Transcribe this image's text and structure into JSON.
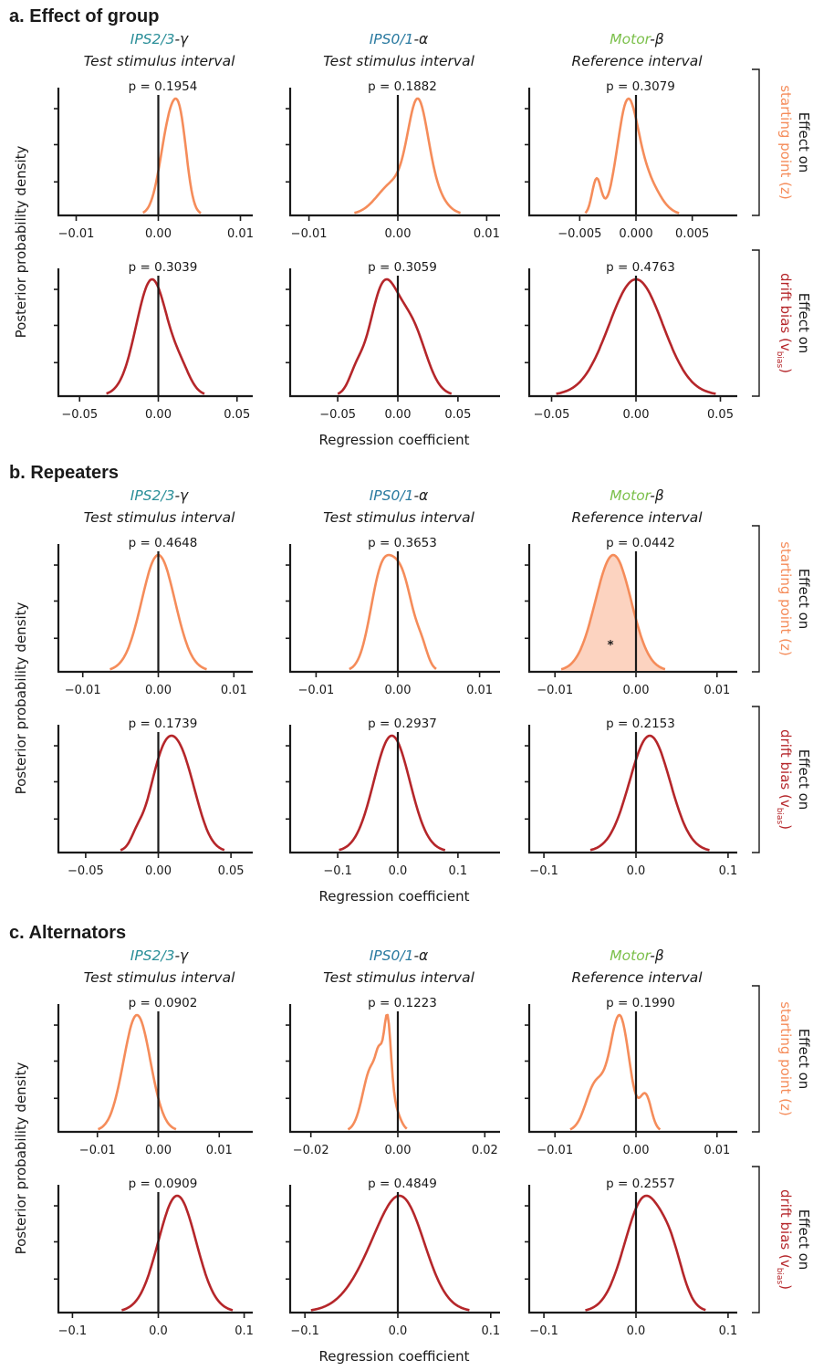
{
  "colors": {
    "orange": "#f58c5a",
    "orange_fill": "#fcd3c0",
    "red": "#b5262a",
    "teal": "#2b8f99",
    "blue": "#2a7aa0",
    "green": "#7cc04b",
    "axis": "#1a1a1a"
  },
  "columns": [
    {
      "region": "IPS2/3",
      "suffix": "-γ",
      "region_color": "teal",
      "interval": "Test stimulus interval"
    },
    {
      "region": "IPS0/1",
      "suffix": "-α",
      "region_color": "blue",
      "interval": "Test stimulus interval"
    },
    {
      "region": "Motor",
      "suffix": "-β",
      "region_color": "green",
      "interval": "Reference interval"
    }
  ],
  "row_labels": {
    "z": {
      "line1": "Effect on",
      "line2": "starting point (z)"
    },
    "v": {
      "line1": "Effect on",
      "line2_main": "drift bias (v",
      "line2_sub": "bias",
      "line2_end": ")"
    }
  },
  "ylabel": "Posterior probability density",
  "xlabel": "Regression coefficient",
  "sections": [
    {
      "title": "a. Effect of group",
      "rows": [
        {
          "param": "z",
          "plots": [
            {
              "p": "p = 0.1954",
              "xlim": [
                -0.0115,
                0.0115
              ],
              "ticks": [
                -0.01,
                0,
                0.01
              ],
              "tick_labels": [
                "−0.01",
                "0.00",
                "0.01"
              ],
              "comps": [
                [
                  0.0015,
                  0.0012,
                  1.0
                ],
                [
                  0.0028,
                  0.0008,
                  0.5
                ]
              ]
            },
            {
              "p": "p = 0.1882",
              "xlim": [
                -0.0115,
                0.0115
              ],
              "ticks": [
                -0.01,
                0,
                0.01
              ],
              "tick_labels": [
                "−0.01",
                "0.00",
                "0.01"
              ],
              "comps": [
                [
                  0.0022,
                  0.0011,
                  1.0
                ],
                [
                  -0.0005,
                  0.0018,
                  0.35
                ],
                [
                  0.0035,
                  0.0015,
                  0.3
                ]
              ]
            },
            {
              "p": "p = 0.3079",
              "xlim": [
                -0.009,
                0.009
              ],
              "ticks": [
                -0.005,
                0,
                0.005
              ],
              "tick_labels": [
                "−0.005",
                "0.000",
                "0.005"
              ],
              "comps": [
                [
                  -0.0008,
                  0.0009,
                  1.0
                ],
                [
                  -0.0035,
                  0.0004,
                  0.35
                ],
                [
                  0.0008,
                  0.0012,
                  0.35
                ]
              ]
            }
          ]
        },
        {
          "param": "v",
          "plots": [
            {
              "p": "p = 0.3039",
              "xlim": [
                -0.06,
                0.06
              ],
              "ticks": [
                -0.05,
                0,
                0.05
              ],
              "tick_labels": [
                "−0.05",
                "0.00",
                "0.05"
              ],
              "comps": [
                [
                  -0.004,
                  0.01,
                  1.0
                ],
                [
                  0.015,
                  0.006,
                  0.15
                ]
              ]
            },
            {
              "p": "p = 0.3059",
              "xlim": [
                -0.085,
                0.085
              ],
              "ticks": [
                -0.05,
                0,
                0.05
              ],
              "tick_labels": [
                "−0.05",
                "0.00",
                "0.05"
              ],
              "comps": [
                [
                  -0.012,
                  0.012,
                  1.0
                ],
                [
                  0.012,
                  0.012,
                  0.6
                ],
                [
                  -0.035,
                  0.006,
                  0.15
                ]
              ]
            },
            {
              "p": "p = 0.4763",
              "xlim": [
                -0.06,
                0.06
              ],
              "ticks": [
                -0.05,
                0,
                0.05
              ],
              "tick_labels": [
                "−0.05",
                "0.00",
                "0.05"
              ],
              "comps": [
                [
                  0.0,
                  0.016,
                  1.0
                ]
              ]
            }
          ]
        }
      ]
    },
    {
      "title": "b. Repeaters",
      "rows": [
        {
          "param": "z",
          "plots": [
            {
              "p": "p = 0.4648",
              "xlim": [
                -0.0125,
                0.0125
              ],
              "ticks": [
                -0.01,
                0,
                0.01
              ],
              "tick_labels": [
                "−0.01",
                "0.00",
                "0.01"
              ],
              "comps": [
                [
                  0.0,
                  0.0022,
                  1.0
                ]
              ]
            },
            {
              "p": "p = 0.3653",
              "xlim": [
                -0.0125,
                0.0125
              ],
              "ticks": [
                -0.01,
                0,
                0.01
              ],
              "tick_labels": [
                "−0.01",
                "0.00",
                "0.01"
              ],
              "comps": [
                [
                  -0.002,
                  0.0014,
                  1.0
                ],
                [
                  0.0006,
                  0.0014,
                  0.9
                ],
                [
                  0.003,
                  0.0007,
                  0.15
                ]
              ]
            },
            {
              "p": "p = 0.0442",
              "xlim": [
                -0.0125,
                0.0125
              ],
              "ticks": [
                -0.01,
                0,
                0.01
              ],
              "tick_labels": [
                "−0.01",
                "0.00",
                "0.01"
              ],
              "comps": [
                [
                  -0.0028,
                  0.0022,
                  1.0
                ]
              ],
              "shaded": true,
              "star": true
            }
          ]
        },
        {
          "param": "v",
          "plots": [
            {
              "p": "p = 0.1739",
              "xlim": [
                -0.065,
                0.065
              ],
              "ticks": [
                -0.05,
                0,
                0.05
              ],
              "tick_labels": [
                "−0.05",
                "0.00",
                "0.05"
              ],
              "comps": [
                [
                  0.003,
                  0.01,
                  0.95
                ],
                [
                  0.018,
                  0.01,
                  0.8
                ],
                [
                  -0.015,
                  0.004,
                  0.1
                ]
              ]
            },
            {
              "p": "p = 0.2937",
              "xlim": [
                -0.17,
                0.17
              ],
              "ticks": [
                -0.1,
                0,
                0.1
              ],
              "tick_labels": [
                "−0.1",
                "0.0",
                "0.1"
              ],
              "comps": [
                [
                  -0.01,
                  0.03,
                  1.0
                ]
              ]
            },
            {
              "p": "p = 0.2153",
              "xlim": [
                -0.11,
                0.11
              ],
              "ticks": [
                -0.1,
                0,
                0.1
              ],
              "tick_labels": [
                "−0.1",
                "0.0",
                "0.1"
              ],
              "comps": [
                [
                  0.015,
                  0.022,
                  1.0
                ]
              ]
            }
          ]
        }
      ]
    },
    {
      "title": "c. Alternators",
      "rows": [
        {
          "param": "z",
          "plots": [
            {
              "p": "p = 0.0902",
              "xlim": [
                -0.0155,
                0.0155
              ],
              "ticks": [
                -0.01,
                0,
                0.01
              ],
              "tick_labels": [
                "−0.01",
                "0.00",
                "0.01"
              ],
              "comps": [
                [
                  -0.0035,
                  0.0022,
                  1.0
                ]
              ]
            },
            {
              "p": "p = 0.1223",
              "xlim": [
                -0.0235,
                0.0235
              ],
              "ticks": [
                -0.02,
                0,
                0.02
              ],
              "tick_labels": [
                "−0.02",
                "0.00",
                "0.02"
              ],
              "comps": [
                [
                  -0.006,
                  0.002,
                  0.55
                ],
                [
                  -0.0042,
                  0.0008,
                  0.3
                ],
                [
                  -0.0024,
                  0.0008,
                  0.75
                ],
                [
                  -0.001,
                  0.0014,
                  0.2
                ]
              ]
            },
            {
              "p": "p = 0.1990",
              "xlim": [
                -0.0125,
                0.0125
              ],
              "ticks": [
                -0.01,
                0,
                0.01
              ],
              "tick_labels": [
                "−0.01",
                "0.00",
                "0.01"
              ],
              "comps": [
                [
                  -0.002,
                  0.0012,
                  1.0
                ],
                [
                  -0.005,
                  0.0012,
                  0.4
                ],
                [
                  0.0012,
                  0.0007,
                  0.3
                ]
              ]
            }
          ]
        },
        {
          "param": "v",
          "plots": [
            {
              "p": "p = 0.0909",
              "xlim": [
                -0.11,
                0.11
              ],
              "ticks": [
                -0.1,
                0,
                0.1
              ],
              "tick_labels": [
                "−0.1",
                "0.0",
                "0.1"
              ],
              "comps": [
                [
                  0.022,
                  0.022,
                  1.0
                ]
              ]
            },
            {
              "p": "p = 0.4849",
              "xlim": [
                -0.11,
                0.11
              ],
              "ticks": [
                -0.1,
                0,
                0.1
              ],
              "tick_labels": [
                "−0.1",
                "0.0",
                "0.1"
              ],
              "comps": [
                [
                  -0.01,
                  0.03,
                  0.8
                ],
                [
                  0.01,
                  0.022,
                  0.6
                ]
              ]
            },
            {
              "p": "p = 0.2557",
              "xlim": [
                -0.11,
                0.11
              ],
              "ticks": [
                -0.1,
                0,
                0.1
              ],
              "tick_labels": [
                "−0.1",
                "0.0",
                "0.1"
              ],
              "comps": [
                [
                  0.01,
                  0.022,
                  1.0
                ],
                [
                  0.04,
                  0.012,
                  0.25
                ]
              ]
            }
          ]
        }
      ]
    }
  ],
  "chart_data": {
    "type": "area",
    "description_of_values": "Each panel shows a posterior probability density of a regression coefficient; 'comps' in sections approximate density shape as Gaussian components [mean, sd, relative weight] in coefficient units.",
    "sections": [
      "a. Effect of group",
      "b. Repeaters",
      "c. Alternators"
    ],
    "panel_columns": [
      "IPS2/3-γ Test stimulus interval",
      "IPS0/1-α Test stimulus interval",
      "Motor-β Reference interval"
    ],
    "panel_rows": [
      "starting point (z)",
      "drift bias (vbias)"
    ],
    "xlabel": "Regression coefficient",
    "ylabel": "Posterior probability density",
    "p_values": {
      "a": {
        "z": [
          0.1954,
          0.1882,
          0.3079
        ],
        "v": [
          0.3039,
          0.3059,
          0.4763
        ]
      },
      "b": {
        "z": [
          0.4648,
          0.3653,
          0.0442
        ],
        "v": [
          0.1739,
          0.2937,
          0.2153
        ]
      },
      "c": {
        "z": [
          0.0902,
          0.1223,
          0.199
        ],
        "v": [
          0.0909,
          0.4849,
          0.2557
        ]
      }
    },
    "significant": [
      "b. Repeaters / Motor-β / starting point (z)"
    ]
  }
}
